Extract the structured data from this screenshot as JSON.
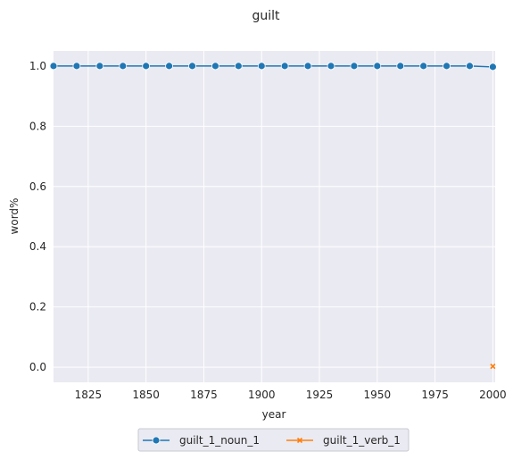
{
  "chart_data": {
    "type": "line",
    "title": "guilt",
    "xlabel": "year",
    "ylabel": "word%",
    "xlim": [
      1810,
      2001
    ],
    "ylim": [
      -0.05,
      1.05
    ],
    "x_ticks": [
      1825,
      1850,
      1875,
      1900,
      1925,
      1950,
      1975,
      2000
    ],
    "y_ticks": [
      0.0,
      0.2,
      0.4,
      0.6,
      0.8,
      1.0
    ],
    "y_tick_labels": [
      "0.0",
      "0.2",
      "0.4",
      "0.6",
      "0.8",
      "1.0"
    ],
    "grid": true,
    "legend_position": "bottom-center",
    "series": [
      {
        "name": "guilt_1_noun_1",
        "color": "#1f77b4",
        "marker": "circle",
        "x": [
          1810,
          1820,
          1830,
          1840,
          1850,
          1860,
          1870,
          1880,
          1890,
          1900,
          1910,
          1920,
          1930,
          1940,
          1950,
          1960,
          1970,
          1980,
          1990,
          2000
        ],
        "y": [
          1.0,
          1.0,
          1.0,
          1.0,
          1.0,
          1.0,
          1.0,
          1.0,
          1.0,
          1.0,
          1.0,
          1.0,
          1.0,
          1.0,
          1.0,
          1.0,
          1.0,
          1.0,
          1.0,
          0.997
        ]
      },
      {
        "name": "guilt_1_verb_1",
        "color": "#ff7f0e",
        "marker": "x",
        "x": [
          2000
        ],
        "y": [
          0.003
        ]
      }
    ]
  }
}
